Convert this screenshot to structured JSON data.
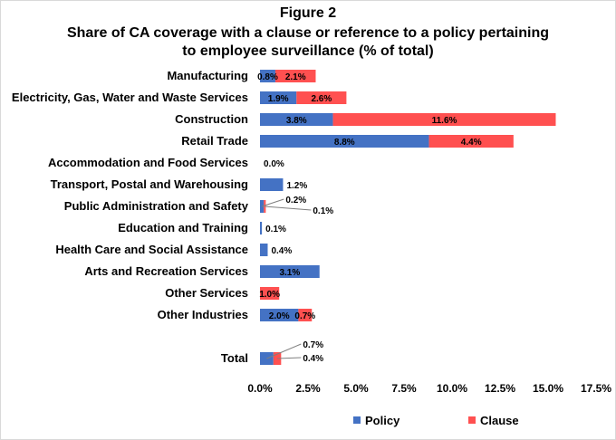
{
  "figure_label": "Figure 2",
  "title_line1": "Share of CA coverage with a clause or reference to a policy pertaining",
  "title_line2": "to employee surveillance (% of total)",
  "chart_data": {
    "type": "bar",
    "orientation": "horizontal",
    "stacked": true,
    "title": "Share of CA coverage with a clause or reference to a policy pertaining to employee surveillance (% of total)",
    "categories": [
      "Manufacturing",
      "Electricity, Gas, Water and Waste Services",
      "Construction",
      "Retail Trade",
      "Accommodation and Food Services",
      "Transport, Postal and Warehousing",
      "Public Administration and Safety",
      "Education and Training",
      "Health Care and Social Assistance",
      "Arts and Recreation Services",
      "Other Services",
      "Other Industries",
      "Total"
    ],
    "series": [
      {
        "name": "Policy",
        "color": "#4472C4",
        "values": [
          0.8,
          1.9,
          3.8,
          8.8,
          0.0,
          1.2,
          0.2,
          0.1,
          0.4,
          3.1,
          0.0,
          2.0,
          0.7
        ],
        "labels": [
          "0.8%",
          "1.9%",
          "3.8%",
          "8.8%",
          "0.0%",
          "1.2%",
          "0.2%",
          "0.1%",
          "0.4%",
          "3.1%",
          "",
          "2.0%",
          "0.7%"
        ]
      },
      {
        "name": "Clause",
        "color": "#FF5050",
        "values": [
          2.1,
          2.6,
          11.6,
          4.4,
          0.0,
          0.0,
          0.1,
          0.0,
          0.0,
          0.0,
          1.0,
          0.7,
          0.4
        ],
        "labels": [
          "2.1%",
          "2.6%",
          "11.6%",
          "4.4%",
          "",
          "",
          "0.1%",
          "",
          "",
          "",
          "1.0%",
          "0.7%",
          "0.4%"
        ]
      }
    ],
    "xlim": [
      0,
      17.5
    ],
    "x_ticks": [
      0,
      2.5,
      5,
      7.5,
      10,
      12.5,
      15,
      17.5
    ],
    "x_tick_labels": [
      "0.0%",
      "2.5%",
      "5.0%",
      "7.5%",
      "10.0%",
      "12.5%",
      "15.0%",
      "17.5%"
    ],
    "xlabel": "",
    "ylabel": "",
    "grid": false,
    "legend_position": "bottom"
  }
}
